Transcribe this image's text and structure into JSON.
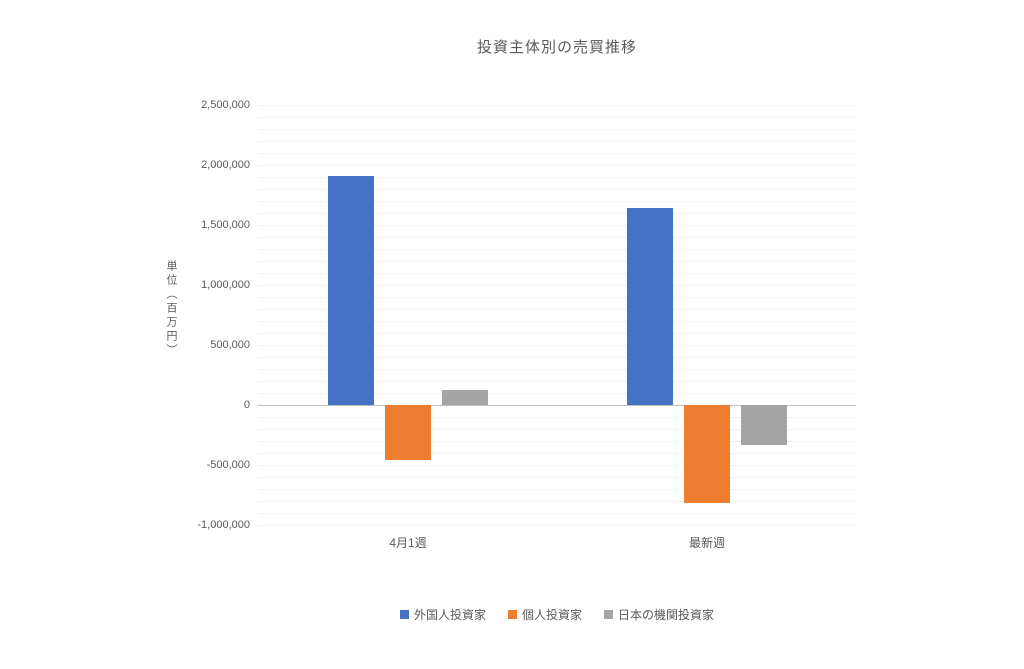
{
  "chart_data": {
    "type": "bar",
    "title": "投資主体別の売買推移",
    "ylabel": "単位（百万円）",
    "categories": [
      "4月1週",
      "最新週"
    ],
    "series": [
      {
        "name": "外国人投資家",
        "color": "#4472C4",
        "values": [
          1910000,
          1640000
        ]
      },
      {
        "name": "個人投資家",
        "color": "#ED7D31",
        "values": [
          -460000,
          -815000
        ]
      },
      {
        "name": "日本の機関投資家",
        "color": "#A5A5A5",
        "values": [
          125000,
          -330000
        ]
      }
    ],
    "ylim": [
      -1000000,
      2500000
    ],
    "ytick_interval": 500000,
    "minor_gridline_interval": 100000,
    "grid": true,
    "legend_position": "bottom",
    "colors": {
      "text": "#595959",
      "gridline_minor": "#F1F1F1",
      "axis_zero_line": "#BFBFBF",
      "background": "#FFFFFF"
    }
  }
}
